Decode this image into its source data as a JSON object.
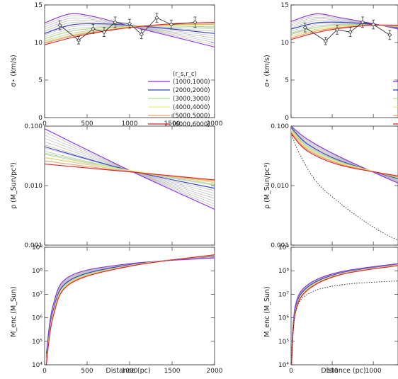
{
  "figure": {
    "xlabel": "Distance (pc)",
    "ylabel_sigma": "σ⋆ (km/s)",
    "ylabel_rho": "ρ (M_Sun/pc³)",
    "ylabel_menc": "M_enc (M_Sun)"
  },
  "legend": {
    "header": "(r_s,r_c)",
    "entries": [
      "(1000,1000)",
      "(2000,2000)",
      "(3000,3000)",
      "(4000,4000)",
      "(5000,5000)",
      "(6000,6000)"
    ],
    "colors": [
      "#8a2be2",
      "#2d3fc8",
      "#aee08a",
      "#f2ee7a",
      "#f4a060",
      "#d8202a"
    ]
  },
  "colors": {
    "grey_models": "#b8b8b8",
    "observed": "#333333",
    "dotted_model": "#222222"
  },
  "chart_data": [
    {
      "panel": "left-top",
      "type": "line",
      "ylabel": "σ⋆ (km/s)",
      "ylim": [
        0,
        15
      ],
      "xlim": [
        0,
        2000
      ],
      "yticks": [
        0,
        5,
        10,
        15
      ],
      "xticks": [
        0,
        500,
        1000,
        1500,
        2000
      ],
      "observed": {
        "x": [
          180,
          400,
          570,
          700,
          830,
          1000,
          1140,
          1320,
          1490,
          1770
        ],
        "y": [
          12.3,
          10.3,
          11.8,
          11.4,
          12.7,
          12.5,
          11.1,
          13.3,
          12.4,
          12.7
        ],
        "err": [
          0.6,
          0.5,
          0.6,
          0.6,
          0.7,
          0.6,
          0.6,
          0.6,
          0.6,
          0.7
        ]
      },
      "series": [
        {
          "x": [
            0,
            300,
            600,
            1000,
            1500,
            2000
          ],
          "y": [
            12.6,
            13.8,
            13.4,
            12.2,
            10.8,
            9.4
          ]
        },
        {
          "x": [
            0,
            300,
            600,
            1000,
            1500,
            2000
          ],
          "y": [
            11.2,
            12.3,
            12.5,
            12.3,
            11.8,
            11.2
          ]
        },
        {
          "x": [
            0,
            300,
            600,
            1000,
            1500,
            2000
          ],
          "y": [
            10.5,
            11.5,
            11.9,
            12.2,
            12.2,
            12.0
          ]
        },
        {
          "x": [
            0,
            300,
            600,
            1000,
            1500,
            2000
          ],
          "y": [
            10.1,
            11.0,
            11.6,
            12.1,
            12.3,
            12.3
          ]
        },
        {
          "x": [
            0,
            300,
            600,
            1000,
            1500,
            2000
          ],
          "y": [
            9.9,
            10.8,
            11.4,
            12.0,
            12.4,
            12.5
          ]
        },
        {
          "x": [
            0,
            300,
            600,
            1000,
            1500,
            2000
          ],
          "y": [
            9.7,
            10.6,
            11.3,
            12.0,
            12.5,
            12.7
          ]
        }
      ]
    },
    {
      "panel": "left-middle",
      "type": "line",
      "ylabel": "ρ (M_Sun/pc³)",
      "yscale": "log",
      "ylim": [
        0.001,
        0.1
      ],
      "yticks": [
        "0.001",
        "0.010",
        "0.100"
      ],
      "xlim": [
        0,
        2000
      ],
      "series": [
        {
          "x": [
            0,
            1000,
            2000
          ],
          "y": [
            0.09,
            0.018,
            0.004
          ]
        },
        {
          "x": [
            0,
            1000,
            2000
          ],
          "y": [
            0.045,
            0.018,
            0.009
          ]
        },
        {
          "x": [
            0,
            1000,
            2000
          ],
          "y": [
            0.035,
            0.018,
            0.0105
          ]
        },
        {
          "x": [
            0,
            1000,
            2000
          ],
          "y": [
            0.03,
            0.018,
            0.0115
          ]
        },
        {
          "x": [
            0,
            1000,
            2000
          ],
          "y": [
            0.026,
            0.017,
            0.012
          ]
        },
        {
          "x": [
            0,
            1000,
            2000
          ],
          "y": [
            0.023,
            0.017,
            0.0125
          ]
        }
      ]
    },
    {
      "panel": "left-bottom",
      "type": "line",
      "ylabel": "M_enc (M_Sun)",
      "yscale": "log",
      "ylim": [
        10000,
        1000000000
      ],
      "yticks": [
        "10⁴",
        "10⁵",
        "10⁶",
        "10⁷",
        "10⁸",
        "10⁹"
      ],
      "xlim": [
        0,
        2000
      ],
      "xticks": [
        0,
        500,
        1000,
        1500,
        2000
      ],
      "xlabel": "Distance (pc)",
      "series": [
        {
          "x": [
            20,
            100,
            300,
            1000,
            2000
          ],
          "y": [
            30000,
            3500000,
            60000000,
            200000000,
            350000000
          ]
        },
        {
          "x": [
            20,
            100,
            300,
            1000,
            2000
          ],
          "y": [
            20000,
            2000000,
            40000000,
            180000000,
            420000000
          ]
        },
        {
          "x": [
            20,
            100,
            300,
            1000,
            2000
          ],
          "y": [
            15000,
            1600000,
            35000000,
            170000000,
            440000000
          ]
        },
        {
          "x": [
            20,
            100,
            300,
            1000,
            2000
          ],
          "y": [
            12000,
            1400000,
            32000000,
            165000000,
            460000000
          ]
        },
        {
          "x": [
            20,
            100,
            300,
            1000,
            2000
          ],
          "y": [
            11000,
            1200000,
            30000000,
            160000000,
            470000000
          ]
        },
        {
          "x": [
            20,
            100,
            300,
            1000,
            2000
          ],
          "y": [
            10000,
            1100000,
            28000000,
            155000000,
            480000000
          ]
        }
      ]
    },
    {
      "panel": "right-top",
      "type": "line",
      "ylim": [
        0,
        15
      ],
      "yticks": [
        0,
        5,
        10,
        15
      ],
      "xlim": [
        0,
        1300
      ],
      "observed": {
        "x": [
          170,
          420,
          560,
          720,
          870,
          1000,
          1200
        ],
        "y": [
          12.0,
          10.2,
          11.7,
          11.4,
          12.7,
          12.4,
          11.0
        ],
        "err": [
          0.6,
          0.5,
          0.6,
          0.6,
          0.7,
          0.6,
          0.6
        ]
      },
      "series": [
        {
          "x": [
            0,
            300,
            600,
            1000,
            1300
          ],
          "y": [
            12.8,
            13.8,
            13.3,
            12.5,
            11.8
          ]
        },
        {
          "x": [
            0,
            300,
            600,
            1000,
            1300
          ],
          "y": [
            11.8,
            12.6,
            12.7,
            12.4,
            12.0
          ]
        },
        {
          "x": [
            0,
            300,
            600,
            1000,
            1300
          ],
          "y": [
            11.2,
            12.0,
            12.3,
            12.3,
            12.1
          ]
        },
        {
          "x": [
            0,
            300,
            600,
            1000,
            1300
          ],
          "y": [
            10.8,
            11.7,
            12.1,
            12.3,
            12.2
          ]
        },
        {
          "x": [
            0,
            300,
            600,
            1000,
            1300
          ],
          "y": [
            10.6,
            11.5,
            12.0,
            12.3,
            12.2
          ]
        },
        {
          "x": [
            0,
            300,
            600,
            1000,
            1300
          ],
          "y": [
            10.4,
            11.3,
            11.9,
            12.3,
            12.3
          ]
        }
      ]
    },
    {
      "panel": "right-middle",
      "type": "line",
      "yscale": "log",
      "ylim": [
        0.001,
        0.1
      ],
      "yticks": [
        "0.001",
        "0.010",
        "0.100"
      ],
      "xlim": [
        0,
        1300
      ],
      "series": [
        {
          "x": [
            0,
            200,
            600,
            1300
          ],
          "y": [
            0.1,
            0.06,
            0.03,
            0.011
          ]
        },
        {
          "x": [
            0,
            200,
            600,
            1300
          ],
          "y": [
            0.095,
            0.05,
            0.026,
            0.013
          ]
        },
        {
          "x": [
            0,
            200,
            600,
            1300
          ],
          "y": [
            0.09,
            0.045,
            0.025,
            0.0135
          ]
        },
        {
          "x": [
            0,
            200,
            600,
            1300
          ],
          "y": [
            0.085,
            0.042,
            0.024,
            0.014
          ]
        },
        {
          "x": [
            0,
            200,
            600,
            1300
          ],
          "y": [
            0.08,
            0.04,
            0.023,
            0.014
          ]
        },
        {
          "x": [
            0,
            200,
            600,
            1300
          ],
          "y": [
            0.075,
            0.038,
            0.022,
            0.0145
          ]
        }
      ],
      "dotted": {
        "x": [
          10,
          100,
          300,
          600,
          1000,
          1300
        ],
        "y": [
          0.07,
          0.035,
          0.012,
          0.005,
          0.002,
          0.0012
        ]
      }
    },
    {
      "panel": "right-bottom",
      "type": "line",
      "yscale": "log",
      "ylim": [
        10000,
        1000000000
      ],
      "yticks": [
        "10⁴",
        "10⁵",
        "10⁶",
        "10⁷",
        "10⁸",
        "10⁹"
      ],
      "xlim": [
        0,
        1300
      ],
      "xticks": [
        0,
        500,
        1000
      ],
      "xlabel": "Distance (pc)",
      "series": [
        {
          "x": [
            5,
            50,
            200,
            600,
            1300
          ],
          "y": [
            20000,
            3000000,
            25000000,
            90000000,
            200000000
          ]
        },
        {
          "x": [
            5,
            50,
            200,
            600,
            1300
          ],
          "y": [
            15000,
            2200000,
            20000000,
            80000000,
            185000000
          ]
        },
        {
          "x": [
            5,
            50,
            200,
            600,
            1300
          ],
          "y": [
            13000,
            1900000,
            18000000,
            75000000,
            180000000
          ]
        },
        {
          "x": [
            5,
            50,
            200,
            600,
            1300
          ],
          "y": [
            12000,
            1700000,
            17000000,
            72000000,
            175000000
          ]
        },
        {
          "x": [
            5,
            50,
            200,
            600,
            1300
          ],
          "y": [
            11000,
            1600000,
            16000000,
            70000000,
            170000000
          ]
        },
        {
          "x": [
            5,
            50,
            200,
            600,
            1300
          ],
          "y": [
            10000,
            1500000,
            15000000,
            68000000,
            165000000
          ]
        }
      ],
      "dotted": {
        "x": [
          5,
          50,
          200,
          600,
          1300
        ],
        "y": [
          12000,
          1500000,
          10000000,
          25000000,
          37000000
        ]
      }
    }
  ]
}
